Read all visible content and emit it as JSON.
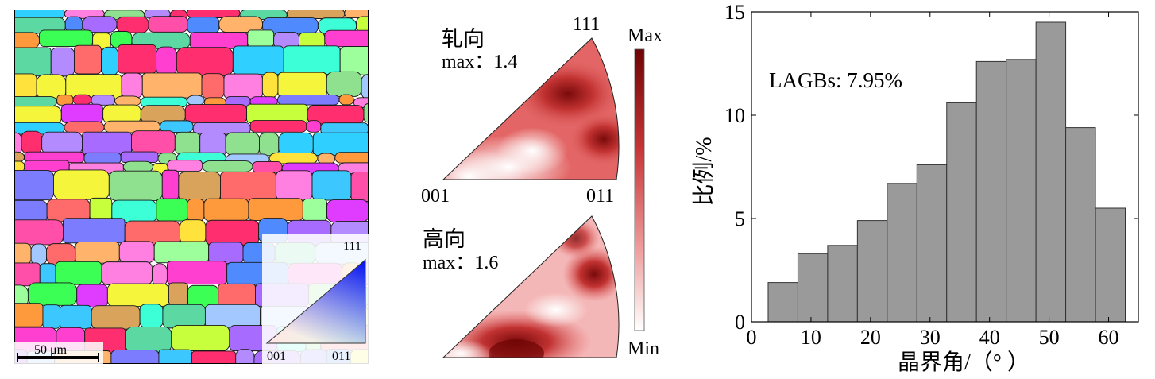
{
  "ebsd_map": {
    "scale_bar_label": "50 μm",
    "key": {
      "corner_111": "111",
      "corner_001": "001",
      "corner_011": "011"
    }
  },
  "pole_figures": {
    "rd": {
      "title": "轧向",
      "max_label": "max：1.4",
      "top": "111",
      "left": "001",
      "right": "011"
    },
    "nd": {
      "title": "高向",
      "max_label": "max：1.6"
    }
  },
  "colorbar": {
    "max_label": "Max",
    "min_label": "Min",
    "dark": "#7a0a0a",
    "light": "#ffffff"
  },
  "chart_data": {
    "type": "bar",
    "annotation": "LAGBs: 7.95%",
    "xlabel": "晶界角/（°  ）",
    "ylabel": "比例/%",
    "xlim": [
      0,
      65
    ],
    "ylim": [
      0,
      15
    ],
    "x_ticks": [
      0,
      10,
      20,
      30,
      40,
      50,
      60
    ],
    "y_ticks": [
      0,
      5,
      10,
      15
    ],
    "bin_width": 5,
    "bin_starts": [
      2.8,
      7.8,
      12.8,
      17.8,
      22.8,
      27.8,
      32.8,
      37.8,
      42.8,
      47.8,
      52.8,
      57.8
    ],
    "values": [
      1.9,
      3.3,
      3.7,
      4.9,
      6.7,
      7.6,
      10.6,
      12.6,
      12.7,
      14.5,
      9.4,
      5.5
    ],
    "bar_color": "#9a9a9a",
    "edge_color": "#333333"
  }
}
